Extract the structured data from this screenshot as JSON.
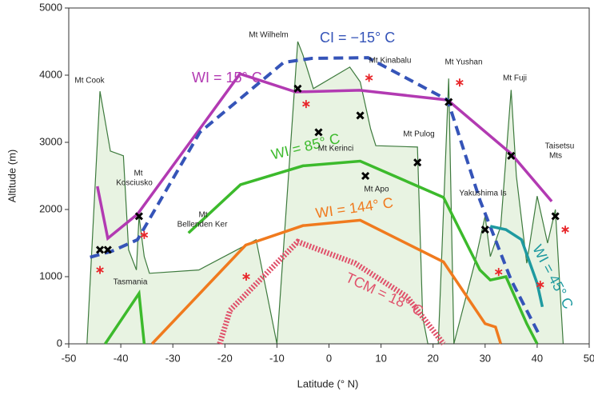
{
  "chart_data": {
    "type": "line",
    "x_label": "Latitude (° N)",
    "y_label": "Altitude (m)",
    "xlim": [
      -50,
      50
    ],
    "xticks": [
      -50,
      -40,
      -30,
      -20,
      -10,
      0,
      10,
      20,
      30,
      40,
      50
    ],
    "ylim": [
      0,
      5000
    ],
    "yticks": [
      0,
      1000,
      2000,
      3000,
      4000,
      5000
    ],
    "terrain": {
      "color": "#3d7a3d",
      "fill": "#e8f3e2",
      "x": [
        -46.5,
        -44,
        -42,
        -39.5,
        -38.5,
        -37,
        -36.5,
        -35.5,
        -34.5,
        -25,
        -14,
        -10,
        -6,
        -5,
        -3,
        4,
        6,
        8,
        9,
        17,
        18,
        19,
        21,
        23,
        24,
        26,
        28,
        30,
        31,
        33,
        35,
        36,
        38,
        40,
        42,
        43.5,
        45
      ],
      "y": [
        0,
        3760,
        2870,
        2800,
        1400,
        1100,
        1900,
        1300,
        1050,
        1100,
        1550,
        0,
        4500,
        4300,
        3800,
        4120,
        3900,
        3200,
        2950,
        2930,
        400,
        0,
        0,
        3950,
        0,
        600,
        1200,
        1900,
        1300,
        1750,
        3780,
        2500,
        1200,
        2200,
        1500,
        2000,
        0
      ]
    },
    "series": [
      {
        "name": "WI = 15° C",
        "color": "#b23ab2",
        "style": "solid",
        "x": [
          -44.5,
          -42.5,
          -36.8,
          -17.1,
          -6.4,
          5.9,
          22.8,
          35,
          42.8
        ],
        "values": [
          2345,
          1570,
          1930,
          4020,
          3750,
          3775,
          3630,
          2830,
          2120
        ]
      },
      {
        "name": "CI = −15° C",
        "color": "#3554b8",
        "style": "dashed",
        "x": [
          -45.9,
          -41.7,
          -36.8,
          -24.8,
          -8.7,
          -3.3,
          7.5,
          22.8,
          29,
          35,
          40.5
        ],
        "values": [
          1290,
          1380,
          1550,
          3150,
          4190,
          4250,
          4260,
          3630,
          2140,
          950,
          120
        ]
      },
      {
        "name": "WI = 85° C",
        "color": "#3cba2c",
        "style": "solid",
        "x": [
          -43,
          -36.5,
          -35.5,
          null,
          -27,
          -17,
          -5,
          6,
          22,
          29,
          31,
          34,
          38,
          40
        ],
        "values": [
          0,
          750,
          0,
          null,
          1650,
          2370,
          2650,
          2720,
          2180,
          1100,
          950,
          1000,
          300,
          0
        ]
      },
      {
        "name": "WI = 144° C",
        "color": "#f07a1e",
        "style": "solid",
        "x": [
          -34,
          -16,
          -5,
          6,
          22,
          30,
          32,
          33
        ],
        "values": [
          0,
          1470,
          1760,
          1840,
          1220,
          300,
          250,
          0
        ]
      },
      {
        "name": "TCM = 18° C",
        "color": "#e0506a",
        "style": "dotted",
        "x": [
          -21,
          -19,
          -6,
          5,
          15,
          22
        ],
        "values": [
          0,
          500,
          1520,
          1200,
          700,
          0
        ]
      },
      {
        "name": "WI = 45° C",
        "color": "#1e9aa0",
        "style": "solid",
        "x": [
          31,
          34,
          37,
          40,
          41
        ],
        "values": [
          1750,
          1700,
          1550,
          900,
          550
        ]
      }
    ],
    "observed": {
      "x": [
        -44,
        -42.5,
        -36.5,
        -6,
        -2,
        6,
        7,
        17,
        23,
        30,
        35,
        43.5
      ],
      "values": [
        1400,
        1400,
        1900,
        3800,
        3150,
        3400,
        2500,
        2700,
        3600,
        1700,
        2800,
        1900
      ]
    },
    "estimated": {
      "color": "#e8262a",
      "x": [
        -44,
        -35.5,
        -15.9,
        -4.4,
        7.7,
        25.1,
        32.6,
        40.6,
        45.4
      ],
      "values": [
        1100,
        1620,
        1000,
        3570,
        3960,
        3890,
        1070,
        880,
        1700
      ]
    },
    "annotations": [
      "Mt Cook",
      "Mt",
      "Kosciusko",
      "Tasmania",
      "Mt",
      "Bellenden Ker",
      "Mt Wilhelm",
      "Mt Kinabalu",
      "Mt Kerinci",
      "Mt Apo",
      "Mt Pulog",
      "Mt Yushan",
      "Mt Fuji",
      "Yakushima Is",
      "Taisetsu",
      "Mts"
    ]
  }
}
